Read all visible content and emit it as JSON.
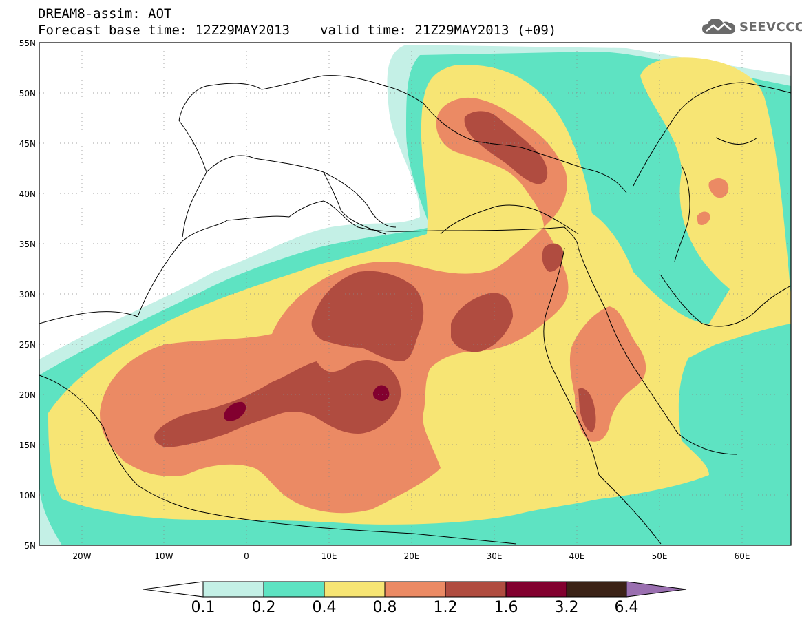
{
  "header": {
    "title_line1": "DREAM8-assim: AOT",
    "title_line2_base": "Forecast base time: 12Z29MAY2013",
    "title_line2_valid": "valid time: 21Z29MAY2013 (+09)",
    "logo_text": "SEEVCCC"
  },
  "map": {
    "lon_range": [
      -25,
      65
    ],
    "lat_range": [
      5,
      55
    ],
    "lat_ticks": [
      "55N",
      "50N",
      "45N",
      "40N",
      "35N",
      "30N",
      "25N",
      "20N",
      "15N",
      "10N",
      "5N"
    ],
    "lon_ticks": [
      "20W",
      "10W",
      "0",
      "10E",
      "20E",
      "30E",
      "40E",
      "50E",
      "60E"
    ],
    "grid": true
  },
  "colorbar": {
    "labels": [
      "0.1",
      "0.2",
      "0.4",
      "0.8",
      "1.2",
      "1.6",
      "3.2",
      "6.4"
    ],
    "colors": [
      "#ffffff",
      "#c4f0e6",
      "#5ee3c2",
      "#f7e574",
      "#eb8a64",
      "#b04c40",
      "#82002f",
      "#3b2216",
      "#9a6fb0"
    ]
  }
}
